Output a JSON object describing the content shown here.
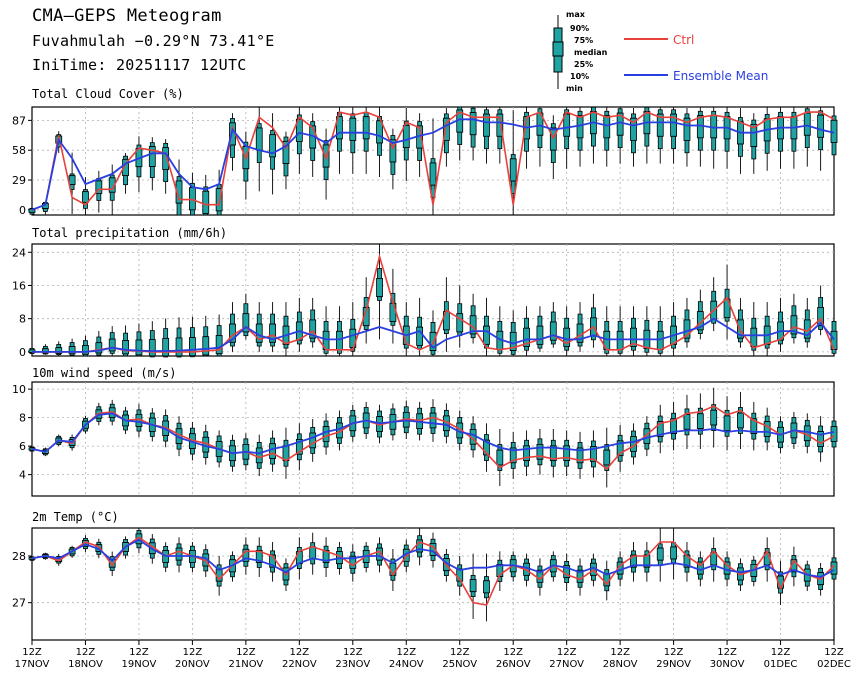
{
  "header": {
    "title": "CMA–GEPS Meteogram",
    "location": "Fuvahmulah −0.29°N 73.41°E",
    "init_time": "IniTime: 20251117  12UTC"
  },
  "legend": {
    "box_labels": [
      "max",
      "90%",
      "75%",
      "median",
      "25%",
      "10%",
      "min"
    ],
    "ctrl_label": "Ctrl",
    "mean_label": "Ensemble Mean",
    "ctrl_color": "#e8413c",
    "mean_color": "#2a3fe0",
    "box_fill": "#1fa3a3"
  },
  "chart_data": [
    {
      "type": "boxplot",
      "title": "Total Cloud Cover (%)",
      "ylim": [
        -5,
        100
      ],
      "yticks": [
        0,
        29,
        58,
        87
      ],
      "ctrl": [
        0,
        5,
        72,
        12,
        5,
        20,
        20,
        45,
        60,
        58,
        55,
        10,
        10,
        5,
        5,
        80,
        50,
        90,
        80,
        60,
        90,
        80,
        50,
        95,
        92,
        95,
        90,
        60,
        85,
        80,
        5,
        85,
        95,
        90,
        90,
        90,
        5,
        90,
        95,
        70,
        95,
        90,
        95,
        90,
        92,
        85,
        95,
        90,
        90,
        85,
        90,
        92,
        90,
        85,
        80,
        88,
        90,
        90,
        95,
        95,
        88
      ],
      "mean": [
        0,
        5,
        68,
        50,
        25,
        30,
        35,
        45,
        50,
        55,
        55,
        35,
        22,
        20,
        25,
        78,
        62,
        58,
        55,
        62,
        75,
        72,
        65,
        75,
        75,
        75,
        72,
        65,
        68,
        72,
        75,
        82,
        88,
        88,
        85,
        85,
        83,
        80,
        82,
        78,
        80,
        82,
        85,
        82,
        85,
        82,
        85,
        85,
        85,
        82,
        82,
        80,
        80,
        75,
        75,
        78,
        80,
        80,
        82,
        78,
        75
      ]
    },
    {
      "type": "boxplot",
      "title": "Total precipitation (mm/6h)",
      "ylim": [
        -1,
        26
      ],
      "yticks": [
        0,
        8,
        16,
        24
      ],
      "ctrl": [
        0,
        0,
        0,
        0,
        0,
        0.5,
        1,
        0.3,
        0.2,
        0,
        0,
        0,
        0,
        0.2,
        0.5,
        4,
        6,
        3,
        4,
        2,
        3,
        5,
        0.5,
        0.5,
        0.5,
        10,
        23,
        12,
        2,
        0.5,
        2,
        10,
        8,
        6,
        1,
        0.5,
        1,
        2,
        3,
        4,
        2,
        4,
        6,
        0.5,
        0.5,
        2,
        1,
        0.5,
        2,
        4,
        7,
        10,
        13,
        5,
        1,
        2,
        3,
        6,
        5,
        8,
        0.5
      ],
      "mean": [
        0,
        0,
        0,
        0,
        0,
        0.3,
        1,
        0.5,
        0.3,
        0.2,
        0.2,
        0.3,
        0.5,
        0.7,
        1,
        3,
        6,
        4,
        3,
        4,
        5,
        4,
        3,
        3,
        4,
        5,
        6,
        5,
        4,
        5,
        1,
        3,
        4,
        5,
        5,
        3,
        2,
        3,
        3,
        4,
        3,
        3,
        4,
        3,
        3,
        3,
        3,
        3,
        4,
        5,
        6,
        8,
        6,
        4,
        4,
        4,
        5,
        5,
        4,
        7,
        3
      ]
    },
    {
      "type": "boxplot",
      "title": "10m wind speed (m/s)",
      "ylim": [
        2.5,
        10.5
      ],
      "yticks": [
        4,
        6,
        8,
        10
      ],
      "ctrl": [
        5.8,
        5.6,
        6.4,
        6.2,
        7.5,
        8.3,
        8.4,
        7.8,
        7.9,
        7.5,
        7.3,
        6.8,
        6.4,
        6.2,
        5.8,
        5.5,
        5.6,
        5.2,
        5.5,
        5,
        5.6,
        6.2,
        6.7,
        7,
        7.6,
        7.8,
        7.5,
        7.7,
        7.9,
        7.8,
        8,
        7.7,
        7.2,
        6.5,
        5.5,
        4.5,
        5,
        5.2,
        5.3,
        5.1,
        5.2,
        5,
        5.1,
        4.4,
        5.5,
        6,
        6.8,
        7.6,
        7.8,
        8.3,
        8.4,
        8.8,
        8.2,
        8.5,
        7.8,
        7.4,
        6.8,
        7.1,
        6.8,
        6.2,
        6.7
      ],
      "mean": [
        5.8,
        5.6,
        6.4,
        6.3,
        7.5,
        8.2,
        8.3,
        7.8,
        7.7,
        7.5,
        7.2,
        6.6,
        6.3,
        6,
        5.8,
        5.5,
        5.6,
        5.5,
        5.8,
        6,
        6.3,
        6.6,
        7,
        7.2,
        7.6,
        7.8,
        7.6,
        7.7,
        7.8,
        7.7,
        7.6,
        7.5,
        7,
        6.8,
        6.3,
        5.9,
        5.7,
        5.8,
        5.9,
        5.9,
        5.8,
        5.7,
        5.8,
        6,
        6.2,
        6.3,
        6.6,
        6.8,
        7,
        7.1,
        7.1,
        7.2,
        7,
        7.1,
        7,
        7,
        6.8,
        7.1,
        7,
        6.8,
        7
      ]
    },
    {
      "type": "boxplot",
      "title": "2m Temp (°C)",
      "ylim": [
        26.2,
        28.6
      ],
      "yticks": [
        27,
        28
      ],
      "ctrl": [
        27.95,
        28,
        27.9,
        28.1,
        28.3,
        28.2,
        27.8,
        28.2,
        28.4,
        28.2,
        28,
        28.1,
        28,
        27.9,
        27.5,
        27.8,
        28.1,
        28.1,
        28,
        27.6,
        28.1,
        28.2,
        28.1,
        28,
        27.8,
        28,
        28.1,
        27.6,
        28,
        28.3,
        28.2,
        27.8,
        27.5,
        27,
        26.95,
        27.6,
        27.8,
        27.7,
        27.5,
        27.8,
        27.6,
        27.5,
        27.7,
        27.4,
        27.8,
        28,
        28,
        28.3,
        28.3,
        28,
        27.8,
        28.1,
        27.8,
        27.6,
        27.7,
        28.1,
        27.3,
        27.9,
        27.6,
        27.5,
        27.8
      ],
      "mean": [
        27.95,
        28,
        27.95,
        28.1,
        28.25,
        28.15,
        27.9,
        28.2,
        28.35,
        28.15,
        28,
        28,
        28,
        27.95,
        27.7,
        27.8,
        27.95,
        27.9,
        27.8,
        27.65,
        27.85,
        27.95,
        27.9,
        27.95,
        27.95,
        28,
        28,
        27.85,
        28.05,
        28.15,
        28.1,
        27.85,
        27.7,
        27.75,
        27.75,
        27.8,
        27.8,
        27.75,
        27.65,
        27.8,
        27.75,
        27.65,
        27.75,
        27.6,
        27.7,
        27.8,
        27.8,
        27.8,
        27.85,
        27.8,
        27.7,
        27.8,
        27.7,
        27.65,
        27.7,
        27.8,
        27.6,
        27.7,
        27.6,
        27.55,
        27.7
      ]
    }
  ],
  "x_axis": {
    "labels_top": [
      "12Z",
      "12Z",
      "12Z",
      "12Z",
      "12Z",
      "12Z",
      "12Z",
      "12Z",
      "12Z",
      "12Z",
      "12Z",
      "12Z",
      "12Z",
      "12Z",
      "12Z",
      "12Z"
    ],
    "labels_bottom": [
      "17NOV",
      "18NOV",
      "19NOV",
      "20NOV",
      "21NOV",
      "22NOV",
      "23NOV",
      "24NOV",
      "25NOV",
      "26NOV",
      "27NOV",
      "28NOV",
      "29NOV",
      "30NOV",
      "01DEC",
      "02DEC"
    ]
  }
}
